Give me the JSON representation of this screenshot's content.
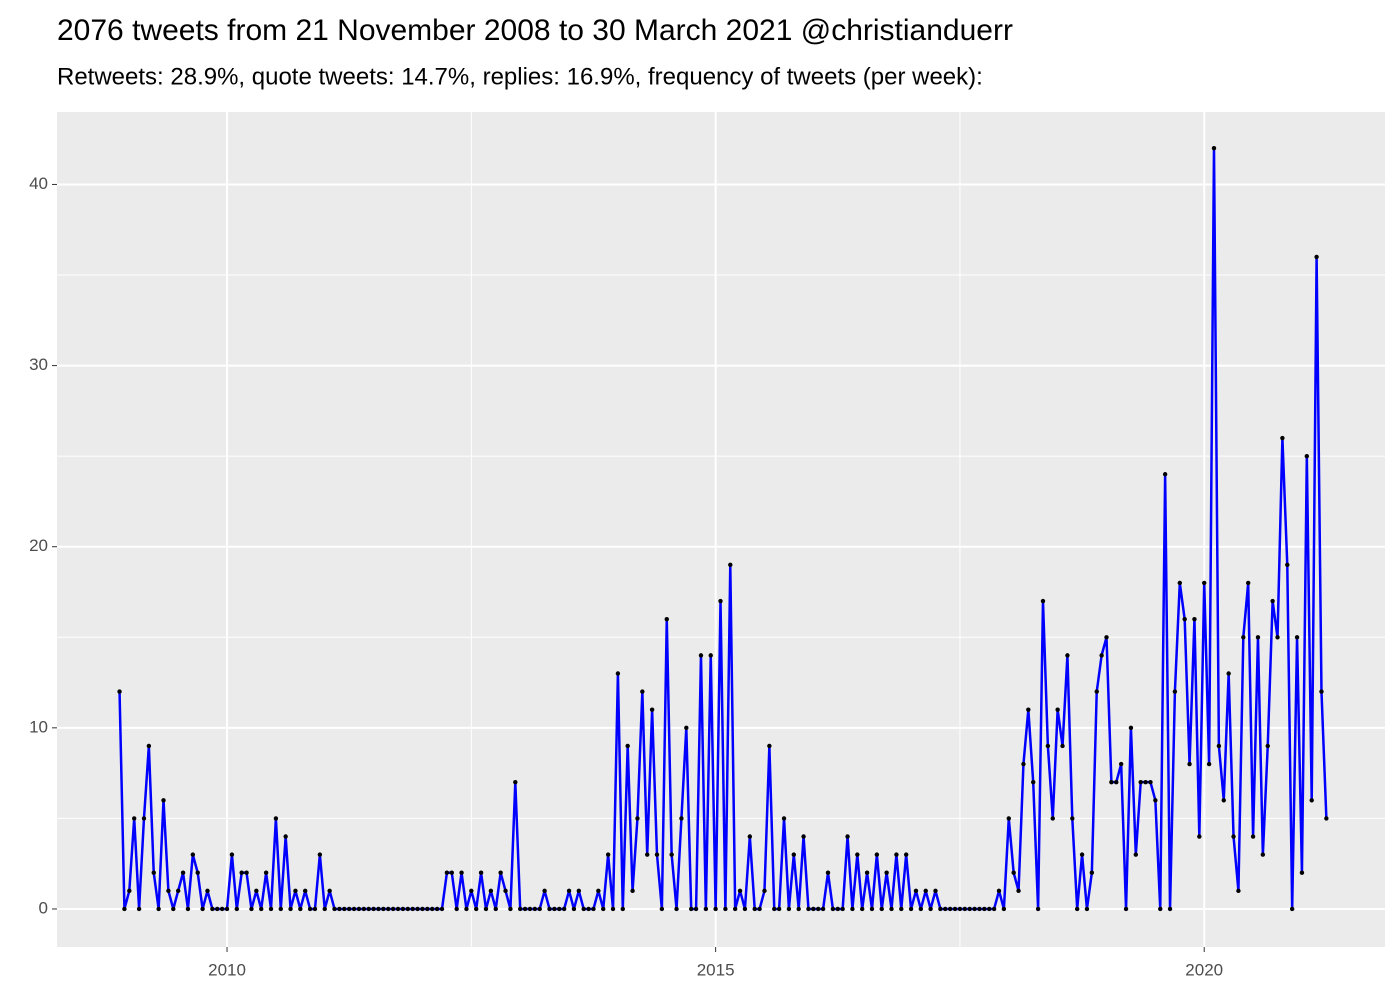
{
  "chart_data": {
    "type": "line",
    "title": "2076 tweets from 21 November 2008 to 30 March 2021 @christianduerr",
    "subtitle": "Retweets: 28.9%, quote tweets: 14.7%, replies: 16.9%, frequency of tweets (per week):",
    "xlim": [
      2008.26,
      2021.85
    ],
    "xticks": [
      2010,
      2015,
      2020
    ],
    "xminorticks": [
      2012.5,
      2017.5
    ],
    "ylim": [
      -2.1,
      44
    ],
    "yticks": [
      0,
      10,
      20,
      30,
      40
    ],
    "yminorticks": [
      5,
      15,
      25,
      35
    ],
    "grid": true,
    "line_color": "#0000ff",
    "point_color": "#000000",
    "x": [
      2008.9,
      2008.95,
      2009,
      2009.05,
      2009.1,
      2009.15,
      2009.2,
      2009.25,
      2009.3,
      2009.35,
      2009.4,
      2009.45,
      2009.5,
      2009.55,
      2009.6,
      2009.65,
      2009.7,
      2009.75,
      2009.8,
      2009.85,
      2009.9,
      2009.95,
      2010,
      2010.05,
      2010.1,
      2010.15,
      2010.2,
      2010.25,
      2010.3,
      2010.35,
      2010.4,
      2010.45,
      2010.5,
      2010.55,
      2010.6,
      2010.65,
      2010.7,
      2010.75,
      2010.8,
      2010.85,
      2010.9,
      2010.95,
      2011,
      2011.05,
      2011.1,
      2011.15,
      2011.2,
      2011.25,
      2011.3,
      2011.35,
      2011.4,
      2011.45,
      2011.5,
      2011.55,
      2011.6,
      2011.65,
      2011.7,
      2011.75,
      2011.8,
      2011.85,
      2011.9,
      2011.95,
      2012,
      2012.05,
      2012.1,
      2012.15,
      2012.2,
      2012.25,
      2012.3,
      2012.35,
      2012.4,
      2012.45,
      2012.5,
      2012.55,
      2012.6,
      2012.65,
      2012.7,
      2012.75,
      2012.8,
      2012.85,
      2012.9,
      2012.95,
      2013,
      2013.05,
      2013.1,
      2013.15,
      2013.2,
      2013.25,
      2013.3,
      2013.35,
      2013.4,
      2013.45,
      2013.5,
      2013.55,
      2013.6,
      2013.65,
      2013.7,
      2013.75,
      2013.8,
      2013.85,
      2013.9,
      2013.95,
      2014,
      2014.05,
      2014.1,
      2014.15,
      2014.2,
      2014.25,
      2014.3,
      2014.35,
      2014.4,
      2014.45,
      2014.5,
      2014.55,
      2014.6,
      2014.65,
      2014.7,
      2014.75,
      2014.8,
      2014.85,
      2014.9,
      2014.95,
      2015,
      2015.05,
      2015.1,
      2015.15,
      2015.2,
      2015.25,
      2015.3,
      2015.35,
      2015.4,
      2015.45,
      2015.5,
      2015.55,
      2015.6,
      2015.65,
      2015.7,
      2015.75,
      2015.8,
      2015.85,
      2015.9,
      2015.95,
      2016,
      2016.05,
      2016.1,
      2016.15,
      2016.2,
      2016.25,
      2016.3,
      2016.35,
      2016.4,
      2016.45,
      2016.5,
      2016.55,
      2016.6,
      2016.65,
      2016.7,
      2016.75,
      2016.8,
      2016.85,
      2016.9,
      2016.95,
      2017,
      2017.05,
      2017.1,
      2017.15,
      2017.2,
      2017.25,
      2017.3,
      2017.35,
      2017.4,
      2017.45,
      2017.5,
      2017.55,
      2017.6,
      2017.65,
      2017.7,
      2017.75,
      2017.8,
      2017.85,
      2017.9,
      2017.95,
      2018,
      2018.05,
      2018.1,
      2018.15,
      2018.2,
      2018.25,
      2018.3,
      2018.35,
      2018.4,
      2018.45,
      2018.5,
      2018.55,
      2018.6,
      2018.65,
      2018.7,
      2018.75,
      2018.8,
      2018.85,
      2018.9,
      2018.95,
      2019,
      2019.05,
      2019.1,
      2019.15,
      2019.2,
      2019.25,
      2019.3,
      2019.35,
      2019.4,
      2019.45,
      2019.5,
      2019.55,
      2019.6,
      2019.65,
      2019.7,
      2019.75,
      2019.8,
      2019.85,
      2019.9,
      2019.95,
      2020,
      2020.05,
      2020.1,
      2020.15,
      2020.2,
      2020.25,
      2020.3,
      2020.35,
      2020.4,
      2020.45,
      2020.5,
      2020.55,
      2020.6,
      2020.65,
      2020.7,
      2020.75,
      2020.8,
      2020.85,
      2020.9,
      2020.95,
      2021,
      2021.05,
      2021.1,
      2021.15,
      2021.2,
      2021.25
    ],
    "values": [
      12,
      0,
      1,
      5,
      0,
      5,
      9,
      2,
      0,
      6,
      1,
      0,
      1,
      2,
      0,
      3,
      2,
      0,
      1,
      0,
      0,
      0,
      0,
      3,
      0,
      2,
      2,
      0,
      1,
      0,
      2,
      0,
      5,
      0,
      4,
      0,
      1,
      0,
      1,
      0,
      0,
      3,
      0,
      1,
      0,
      0,
      0,
      0,
      0,
      0,
      0,
      0,
      0,
      0,
      0,
      0,
      0,
      0,
      0,
      0,
      0,
      0,
      0,
      0,
      0,
      0,
      0,
      2,
      2,
      0,
      2,
      0,
      1,
      0,
      2,
      0,
      1,
      0,
      2,
      1,
      0,
      7,
      0,
      0,
      0,
      0,
      0,
      1,
      0,
      0,
      0,
      0,
      1,
      0,
      1,
      0,
      0,
      0,
      1,
      0,
      3,
      0,
      13,
      0,
      9,
      1,
      5,
      12,
      3,
      11,
      3,
      0,
      16,
      3,
      0,
      5,
      10,
      0,
      0,
      14,
      0,
      14,
      0,
      17,
      0,
      19,
      0,
      1,
      0,
      4,
      0,
      0,
      1,
      9,
      0,
      0,
      5,
      0,
      3,
      0,
      4,
      0,
      0,
      0,
      0,
      2,
      0,
      0,
      0,
      4,
      0,
      3,
      0,
      2,
      0,
      3,
      0,
      2,
      0,
      3,
      0,
      3,
      0,
      1,
      0,
      1,
      0,
      1,
      0,
      0,
      0,
      0,
      0,
      0,
      0,
      0,
      0,
      0,
      0,
      0,
      1,
      0,
      5,
      2,
      1,
      8,
      11,
      7,
      0,
      17,
      9,
      5,
      11,
      9,
      14,
      5,
      0,
      3,
      0,
      2,
      12,
      14,
      15,
      7,
      7,
      8,
      0,
      10,
      3,
      7,
      7,
      7,
      6,
      0,
      24,
      0,
      12,
      18,
      16,
      8,
      16,
      4,
      18,
      8,
      42,
      9,
      6,
      13,
      4,
      1,
      15,
      18,
      4,
      15,
      3,
      9,
      17,
      15,
      26,
      19,
      0,
      15,
      2,
      25,
      6,
      36,
      12,
      5
    ]
  }
}
